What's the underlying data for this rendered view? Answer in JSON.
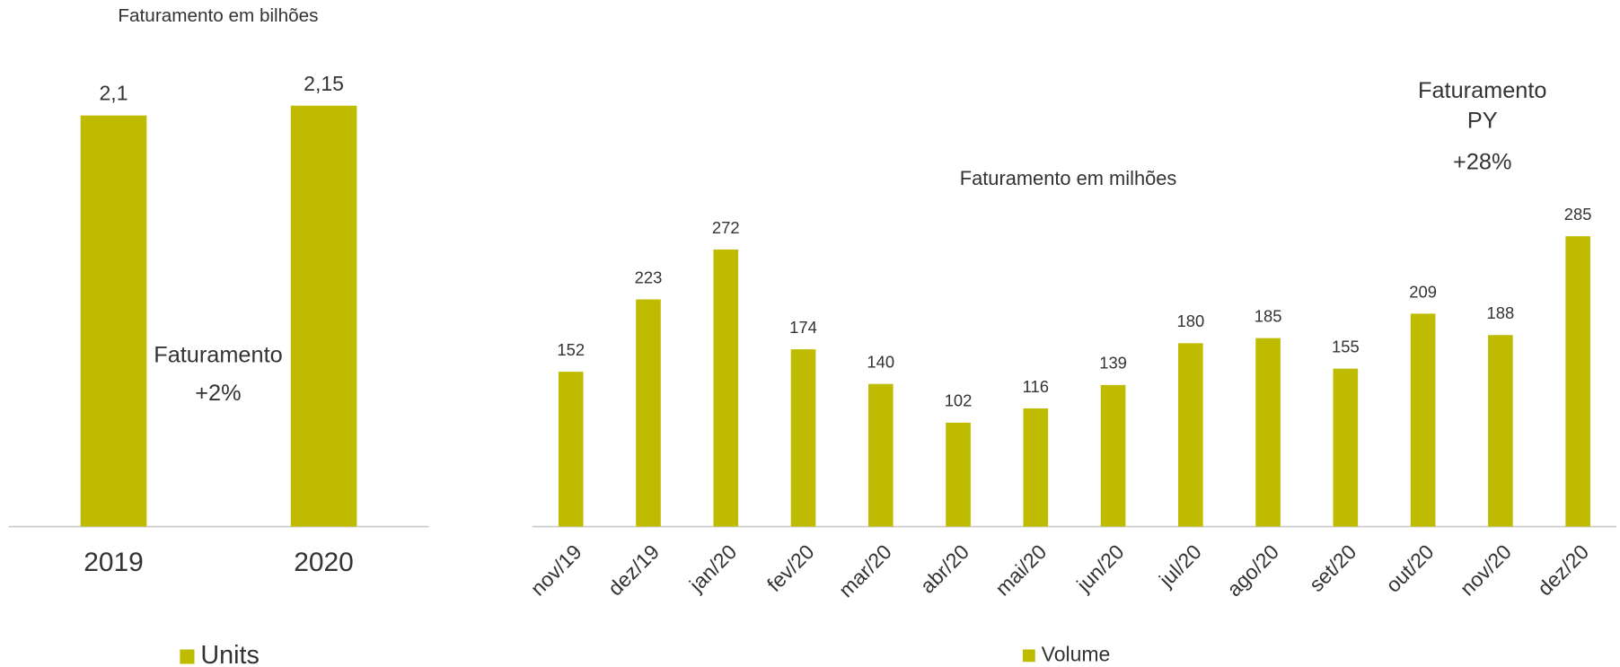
{
  "chart_data": [
    {
      "type": "bar",
      "title": "Faturamento em bilhões",
      "categories": [
        "2019",
        "2020"
      ],
      "series": [
        {
          "name": "Units",
          "color": "#bfbb00",
          "values": [
            2.1,
            2.15
          ],
          "value_labels": [
            "2,1",
            "2,15"
          ]
        }
      ],
      "ylim": [
        0,
        2.5
      ],
      "annotation": [
        "Faturamento",
        "+2%"
      ]
    },
    {
      "type": "bar",
      "title": "Faturamento em milhões",
      "categories": [
        "nov/19",
        "dez/19",
        "jan/20",
        "fev/20",
        "mar/20",
        "abr/20",
        "mai/20",
        "jun/20",
        "jul/20",
        "ago/20",
        "set/20",
        "out/20",
        "nov/20",
        "dez/20"
      ],
      "series": [
        {
          "name": "Volume",
          "color": "#bfbb00",
          "values": [
            152,
            223,
            272,
            174,
            140,
            102,
            116,
            139,
            180,
            185,
            155,
            209,
            188,
            285
          ]
        }
      ],
      "ylim": [
        0,
        300
      ],
      "annotation": [
        "Faturamento",
        "PY",
        "+28%"
      ]
    }
  ]
}
